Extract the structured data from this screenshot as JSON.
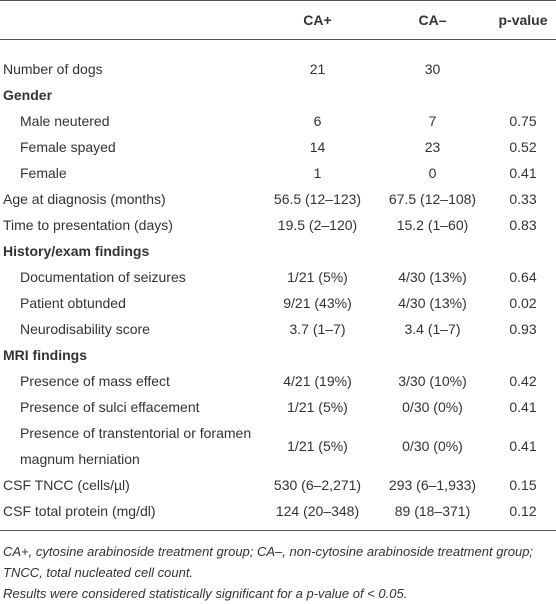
{
  "table": {
    "headers": [
      "CA+",
      "CA–",
      "p-value"
    ],
    "body": [
      {
        "label": "Number of dogs",
        "ca_plus": "21",
        "ca_minus": "30"
      },
      {
        "section": "Gender",
        "rows": [
          {
            "label": "Male neutered",
            "ca_plus": "6",
            "ca_minus": "7",
            "p": "0.75"
          },
          {
            "label": "Female spayed",
            "ca_plus": "14",
            "ca_minus": "23",
            "p": "0.52"
          },
          {
            "label": "Female",
            "ca_plus": "1",
            "ca_minus": "0",
            "p": "0.41"
          }
        ]
      },
      {
        "label": "Age at diagnosis (months)",
        "ca_plus": "56.5 (12–123)",
        "ca_minus": "67.5 (12–108)",
        "p": "0.33"
      },
      {
        "label": "Time to presentation (days)",
        "ca_plus": "19.5 (2–120)",
        "ca_minus": "15.2 (1–60)",
        "p": "0.83"
      },
      {
        "section": "History/exam findings",
        "rows": [
          {
            "label": "Documentation of seizures",
            "ca_plus": "1/21 (5%)",
            "ca_minus": "4/30 (13%)",
            "p": "0.64"
          },
          {
            "label": "Patient obtunded",
            "ca_plus": "9/21 (43%)",
            "ca_minus": "4/30 (13%)",
            "p": "0.02"
          },
          {
            "label": "Neurodisability score",
            "ca_plus": "3.7 (1–7)",
            "ca_minus": "3.4 (1–7)",
            "p": "0.93"
          }
        ]
      },
      {
        "section": "MRI findings",
        "rows": [
          {
            "label": "Presence of mass effect",
            "ca_plus": "4/21 (19%)",
            "ca_minus": "3/30 (10%)",
            "p": "0.42"
          },
          {
            "label": "Presence of sulci effacement",
            "ca_plus": "1/21 (5%)",
            "ca_minus": "0/30 (0%)",
            "p": "0.41"
          },
          {
            "label": "Presence of transtentorial or foramen magnum herniation",
            "ca_plus": "1/21 (5%)",
            "ca_minus": "0/30 (0%)",
            "p": "0.41"
          }
        ]
      },
      {
        "label": "CSF TNCC (cells/µl)",
        "ca_plus": "530 (6–2,271)",
        "ca_minus": "293 (6–1,933)",
        "p": "0.15"
      },
      {
        "label": "CSF total protein (mg/dl)",
        "ca_plus": "124 (20–348)",
        "ca_minus": "89 (18–371)",
        "p": "0.12"
      }
    ]
  },
  "notes": [
    "CA+, cytosine arabinoside treatment group; CA–, non-cytosine arabinoside treatment group; TNCC, total nucleated cell count.",
    "Results were considered statistically significant for a p-value of < 0.05."
  ]
}
